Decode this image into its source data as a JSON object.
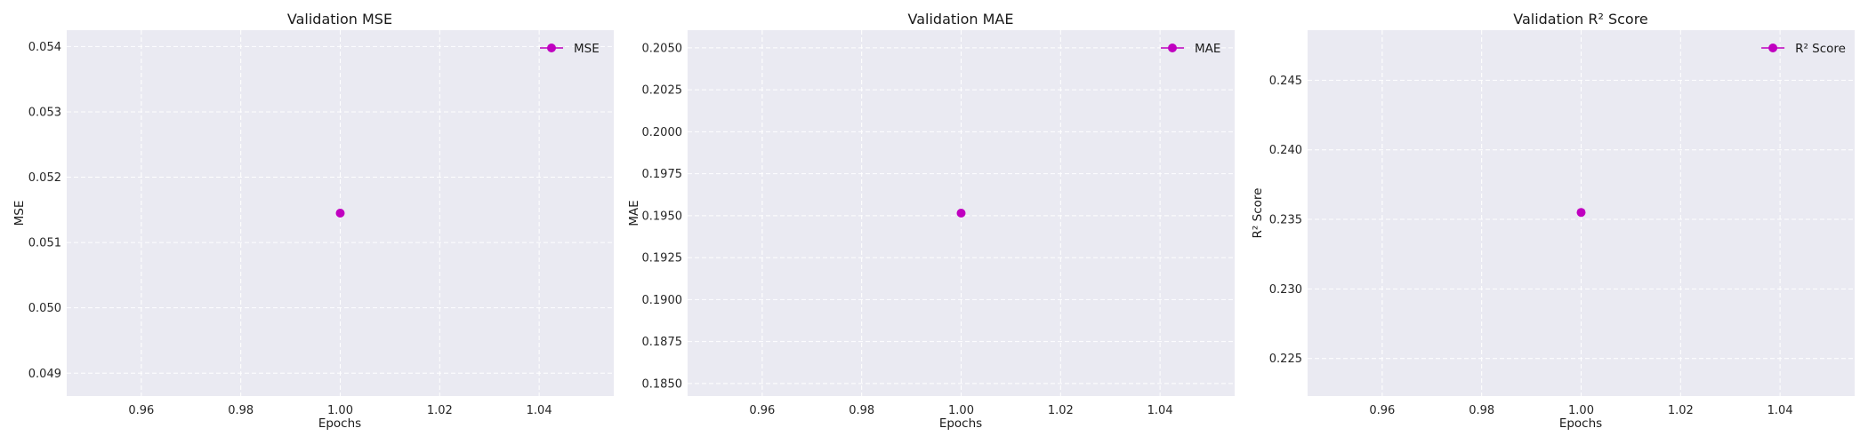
{
  "chart_data": [
    {
      "type": "line",
      "title": "Validation MSE",
      "xlabel": "Epochs",
      "ylabel": "MSE",
      "x": [
        1.0
      ],
      "series": [
        {
          "name": "MSE",
          "values": [
            0.05145
          ]
        }
      ],
      "xlim": [
        0.945,
        1.055
      ],
      "ylim": [
        0.04865,
        0.05425
      ],
      "xticks": [
        "0.96",
        "0.98",
        "1.00",
        "1.02",
        "1.04"
      ],
      "xtick_values": [
        0.96,
        0.98,
        1.0,
        1.02,
        1.04
      ],
      "yticks": [
        "0.049",
        "0.050",
        "0.051",
        "0.052",
        "0.053",
        "0.054"
      ],
      "ytick_values": [
        0.049,
        0.05,
        0.051,
        0.052,
        0.053,
        0.054
      ],
      "legend": "top-right",
      "grid": true
    },
    {
      "type": "line",
      "title": "Validation MAE",
      "xlabel": "Epochs",
      "ylabel": "MAE",
      "x": [
        1.0
      ],
      "series": [
        {
          "name": "MAE",
          "values": [
            0.19515
          ]
        }
      ],
      "xlim": [
        0.945,
        1.055
      ],
      "ylim": [
        0.18425,
        0.20605
      ],
      "xticks": [
        "0.96",
        "0.98",
        "1.00",
        "1.02",
        "1.04"
      ],
      "xtick_values": [
        0.96,
        0.98,
        1.0,
        1.02,
        1.04
      ],
      "yticks": [
        "0.1850",
        "0.1875",
        "0.1900",
        "0.1925",
        "0.1950",
        "0.1975",
        "0.2000",
        "0.2025",
        "0.2050"
      ],
      "ytick_values": [
        0.185,
        0.1875,
        0.19,
        0.1925,
        0.195,
        0.1975,
        0.2,
        0.2025,
        0.205
      ],
      "legend": "top-right",
      "grid": true
    },
    {
      "type": "line",
      "title": "Validation R² Score",
      "xlabel": "Epochs",
      "ylabel": "R² Score",
      "x": [
        1.0
      ],
      "series": [
        {
          "name": "R² Score",
          "values": [
            0.2355
          ]
        }
      ],
      "xlim": [
        0.945,
        1.055
      ],
      "ylim": [
        0.2223,
        0.2486
      ],
      "xticks": [
        "0.96",
        "0.98",
        "1.00",
        "1.02",
        "1.04"
      ],
      "xtick_values": [
        0.96,
        0.98,
        1.0,
        1.02,
        1.04
      ],
      "yticks": [
        "0.225",
        "0.230",
        "0.235",
        "0.240",
        "0.245"
      ],
      "ytick_values": [
        0.225,
        0.23,
        0.235,
        0.24,
        0.245
      ],
      "legend": "top-right",
      "grid": true
    }
  ],
  "colors": {
    "plot_background": "#eaeaf2",
    "grid": "#ffffff",
    "series": "#c000c0",
    "text": "#1a1a1a"
  }
}
